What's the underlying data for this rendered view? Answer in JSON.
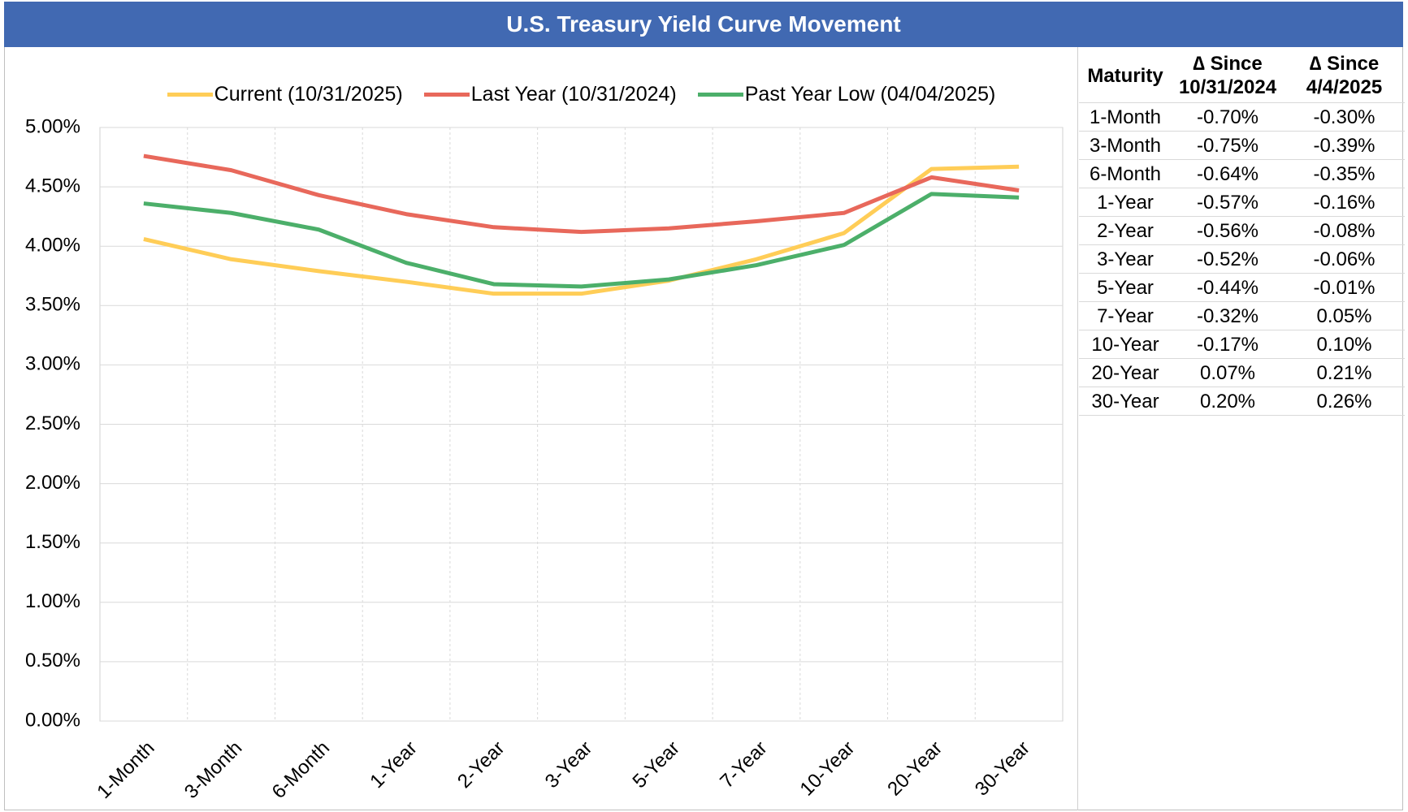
{
  "chart_data": {
    "type": "line",
    "title": "U.S. Treasury Yield Curve Movement",
    "categories": [
      "1-Month",
      "3-Month",
      "6-Month",
      "1-Year",
      "2-Year",
      "3-Year",
      "5-Year",
      "7-Year",
      "10-Year",
      "20-Year",
      "30-Year"
    ],
    "series": [
      {
        "name": "Current (10/31/2025)",
        "color": "#ffcd57",
        "values": [
          4.06,
          3.89,
          3.79,
          3.7,
          3.6,
          3.6,
          3.71,
          3.89,
          4.11,
          4.65,
          4.67
        ]
      },
      {
        "name": "Last Year (10/31/2024)",
        "color": "#e8685b",
        "values": [
          4.76,
          4.64,
          4.43,
          4.27,
          4.16,
          4.12,
          4.15,
          4.21,
          4.28,
          4.58,
          4.47
        ]
      },
      {
        "name": "Past Year Low (04/04/2025)",
        "color": "#4caf6a",
        "values": [
          4.36,
          4.28,
          4.14,
          3.86,
          3.68,
          3.66,
          3.72,
          3.84,
          4.01,
          4.44,
          4.41
        ]
      }
    ],
    "ylim": [
      0,
      5
    ],
    "yticks": [
      {
        "value": 0,
        "label": "0.00%"
      },
      {
        "value": 0.5,
        "label": "0.50%"
      },
      {
        "value": 1,
        "label": "1.00%"
      },
      {
        "value": 1.5,
        "label": "1.50%"
      },
      {
        "value": 2,
        "label": "2.00%"
      },
      {
        "value": 2.5,
        "label": "2.50%"
      },
      {
        "value": 3,
        "label": "3.00%"
      },
      {
        "value": 3.5,
        "label": "3.50%"
      },
      {
        "value": 4,
        "label": "4.00%"
      },
      {
        "value": 4.5,
        "label": "4.50%"
      },
      {
        "value": 5,
        "label": "5.00%"
      }
    ],
    "grid": true,
    "legend": "top"
  },
  "table": {
    "header": [
      [
        "Maturity"
      ],
      [
        "∆ Since",
        "10/31/2024"
      ],
      [
        "∆ Since",
        "4/4/2025"
      ]
    ],
    "rows": [
      [
        "1-Month",
        "-0.70%",
        "-0.30%"
      ],
      [
        "3-Month",
        "-0.75%",
        "-0.39%"
      ],
      [
        "6-Month",
        "-0.64%",
        "-0.35%"
      ],
      [
        "1-Year",
        "-0.57%",
        "-0.16%"
      ],
      [
        "2-Year",
        "-0.56%",
        "-0.08%"
      ],
      [
        "3-Year",
        "-0.52%",
        "-0.06%"
      ],
      [
        "5-Year",
        "-0.44%",
        "-0.01%"
      ],
      [
        "7-Year",
        "-0.32%",
        "0.05%"
      ],
      [
        "10-Year",
        "-0.17%",
        "0.10%"
      ],
      [
        "20-Year",
        "0.07%",
        "0.21%"
      ],
      [
        "30-Year",
        "0.20%",
        "0.26%"
      ]
    ]
  }
}
